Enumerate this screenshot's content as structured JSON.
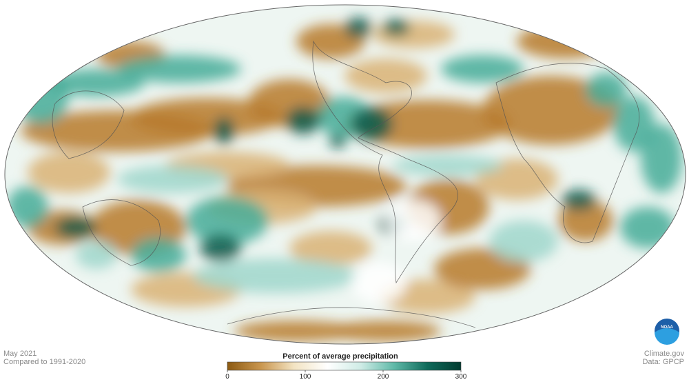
{
  "map": {
    "date": "May 2021",
    "baseline": "Compared to 1991-2020",
    "source": "Climate.gov",
    "data_credit": "Data: GPCP",
    "logo": "NOAA"
  },
  "colorbar": {
    "title": "Percent of average precipitation",
    "range": [
      0,
      300
    ],
    "ticks": [
      0,
      100,
      200,
      300
    ],
    "colors": [
      "#8c5a12",
      "#c9964f",
      "#f3e4c3",
      "#ffffff",
      "#cfece6",
      "#5fb9a8",
      "#0f6a5a",
      "#023b30"
    ]
  }
}
